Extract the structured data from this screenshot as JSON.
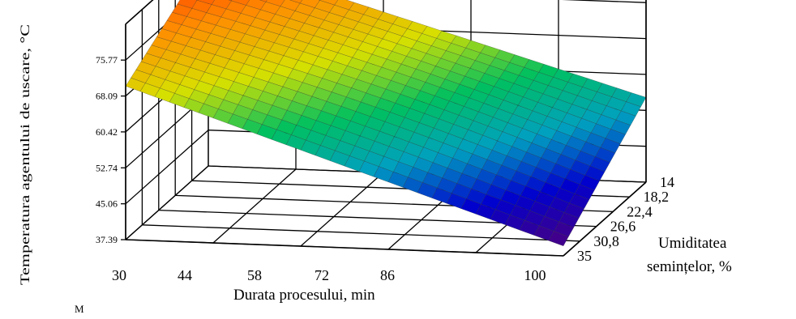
{
  "chart_data": {
    "type": "surface3d",
    "zlabel": "Temperatura agentului de uscare, °C",
    "xlabel": "Durata procesului, min",
    "ylabel_line1": "Umiditatea",
    "ylabel_line2": "semințelor, %",
    "x_ticks": [
      "30",
      "44",
      "58",
      "72",
      "86",
      "100"
    ],
    "y_ticks": [
      "14",
      "18,2",
      "22,4",
      "26,6",
      "30,8",
      "35"
    ],
    "z_ticks": [
      "37.39",
      "45.06",
      "52.74",
      "60.42",
      "68.09",
      "75.77"
    ],
    "xlim": [
      30,
      100
    ],
    "ylim": [
      14,
      35
    ],
    "zlim": [
      37.39,
      83.45
    ],
    "corner_values": {
      "x30_y14": 82.5,
      "x30_y35": 70.2,
      "x100_y14": 55.5,
      "x100_y35": 39.5
    },
    "colormap": [
      "#4b0082",
      "#0000cd",
      "#00a0c0",
      "#00c060",
      "#d8e000",
      "#ff8c00",
      "#ff2000"
    ],
    "grid": true
  },
  "footer_mark": "M"
}
